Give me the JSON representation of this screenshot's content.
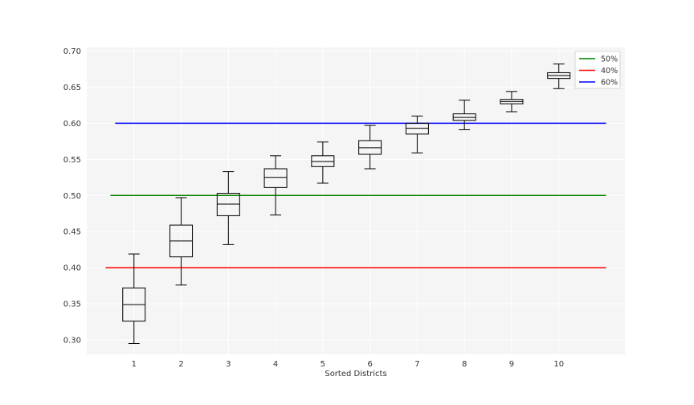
{
  "chart_data": {
    "type": "boxplot",
    "title": "",
    "xlabel": "Sorted Districts",
    "ylabel": "",
    "ylim": [
      0.28,
      0.705
    ],
    "xlim": [
      0,
      11.4
    ],
    "grid": true,
    "legend_position": "top-right",
    "y_ticks": [
      "0.30",
      "0.35",
      "0.40",
      "0.45",
      "0.50",
      "0.55",
      "0.60",
      "0.65",
      "0.70"
    ],
    "categories": [
      "1",
      "2",
      "3",
      "4",
      "5",
      "6",
      "7",
      "8",
      "9",
      "10"
    ],
    "boxes": [
      {
        "label": "1",
        "whisker_low": 0.295,
        "q1": 0.326,
        "median": 0.349,
        "q3": 0.372,
        "whisker_high": 0.419
      },
      {
        "label": "2",
        "whisker_low": 0.376,
        "q1": 0.415,
        "median": 0.437,
        "q3": 0.459,
        "whisker_high": 0.497
      },
      {
        "label": "3",
        "whisker_low": 0.432,
        "q1": 0.472,
        "median": 0.488,
        "q3": 0.503,
        "whisker_high": 0.533
      },
      {
        "label": "4",
        "whisker_low": 0.473,
        "q1": 0.511,
        "median": 0.525,
        "q3": 0.537,
        "whisker_high": 0.555
      },
      {
        "label": "5",
        "whisker_low": 0.517,
        "q1": 0.54,
        "median": 0.547,
        "q3": 0.555,
        "whisker_high": 0.574
      },
      {
        "label": "6",
        "whisker_low": 0.537,
        "q1": 0.557,
        "median": 0.566,
        "q3": 0.576,
        "whisker_high": 0.597
      },
      {
        "label": "7",
        "whisker_low": 0.559,
        "q1": 0.585,
        "median": 0.593,
        "q3": 0.6,
        "whisker_high": 0.61
      },
      {
        "label": "8",
        "whisker_low": 0.591,
        "q1": 0.604,
        "median": 0.608,
        "q3": 0.613,
        "whisker_high": 0.632
      },
      {
        "label": "9",
        "whisker_low": 0.616,
        "q1": 0.627,
        "median": 0.63,
        "q3": 0.633,
        "whisker_high": 0.644
      },
      {
        "label": "10",
        "whisker_low": 0.648,
        "q1": 0.662,
        "median": 0.666,
        "q3": 0.67,
        "whisker_high": 0.682
      }
    ],
    "reference_lines": [
      {
        "name": "50%",
        "value": 0.5,
        "x_start": 0.5,
        "x_end": 11.0,
        "color": "#008000"
      },
      {
        "name": "40%",
        "value": 0.4,
        "x_start": 0.4,
        "x_end": 11.0,
        "color": "#ff0000"
      },
      {
        "name": "60%",
        "value": 0.6,
        "x_start": 0.6,
        "x_end": 11.0,
        "color": "#0000ff"
      }
    ],
    "legend": [
      "50%",
      "40%",
      "60%"
    ]
  }
}
